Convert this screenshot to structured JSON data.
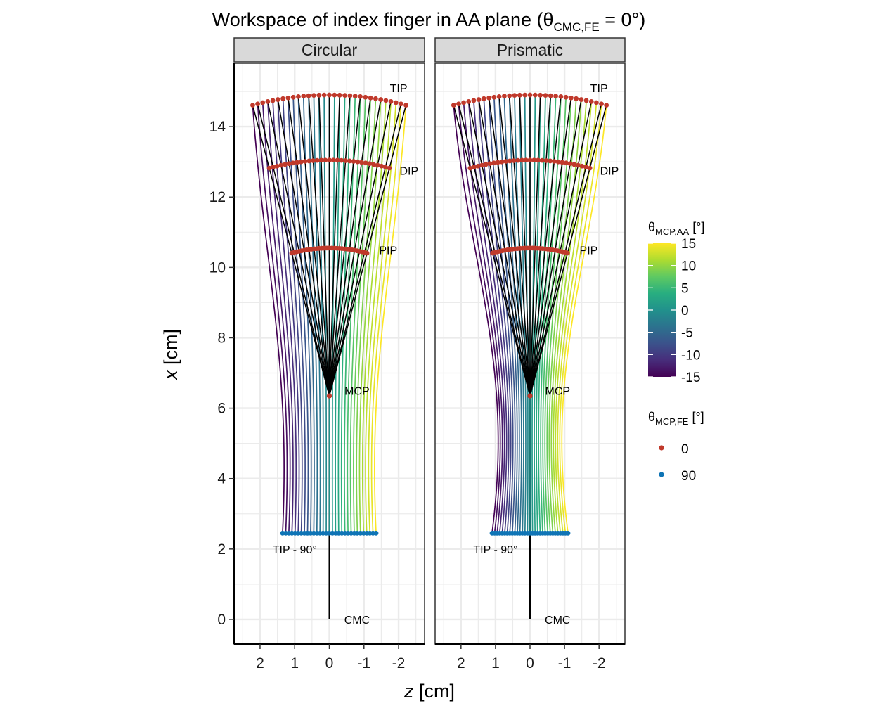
{
  "chart_data": {
    "type": "line",
    "title": {
      "prefix": "Workspace of index finger in AA plane (",
      "theta": "θ",
      "subscript": "CMC,FE",
      "suffix": " = 0°)"
    },
    "facets": [
      "Circular",
      "Prismatic"
    ],
    "xlabel": {
      "var": "z",
      "unit": " [cm]"
    },
    "ylabel": {
      "var": "x",
      "unit": " [cm]"
    },
    "x_axis_reversed": true,
    "xlim": [
      2.75,
      -2.75
    ],
    "ylim": [
      -0.7,
      15.8
    ],
    "x_ticks": [
      2,
      1,
      0,
      -1,
      -2
    ],
    "y_ticks": [
      0,
      2,
      4,
      6,
      8,
      10,
      12,
      14
    ],
    "grid": true,
    "legend_position": "right",
    "annotations": [
      {
        "label": "TIP",
        "x": -2.0,
        "y": 15.1
      },
      {
        "label": "DIP",
        "x": -2.3,
        "y": 12.75
      },
      {
        "label": "PIP",
        "x": -1.7,
        "y": 10.5
      },
      {
        "label": "MCP",
        "x": -0.8,
        "y": 6.5
      },
      {
        "label": "TIP - 90°",
        "x": 1.0,
        "y": 2.0
      },
      {
        "label": "CMC",
        "x": -0.8,
        "y": 0.0
      }
    ],
    "lengths": {
      "mcp_y": 6.35,
      "proximal": 4.2,
      "middle": 2.5,
      "distal": 1.85
    },
    "fe90": {
      "Circular": {
        "y": 2.45,
        "half_width": 1.35,
        "bulge": 0.45
      },
      "Prismatic": {
        "y": 2.45,
        "half_width": 1.1,
        "bulge": 0.85
      }
    },
    "legend": {
      "color_title": {
        "theta": "θ",
        "subscript": "MCP,AA",
        "unit": " [°]"
      },
      "color_range": [
        -15,
        15
      ],
      "color_ticks": [
        15,
        10,
        5,
        0,
        -5,
        -10,
        -15
      ],
      "point_title": {
        "theta": "θ",
        "subscript": "MCP,FE",
        "unit": " [°]"
      },
      "point_entries": [
        {
          "label": "0",
          "color": "#c0392b"
        },
        {
          "label": "90",
          "color": "#0f74b5"
        }
      ]
    },
    "colors": {
      "joint_fe0": "#c0392b",
      "joint_fe90": "#0f74b5",
      "finger_lines": "#000000",
      "viridis": [
        "#440154",
        "#472d7b",
        "#3b528b",
        "#2c728e",
        "#21918c",
        "#28ae80",
        "#5ec962",
        "#addc30",
        "#fde725"
      ]
    }
  }
}
